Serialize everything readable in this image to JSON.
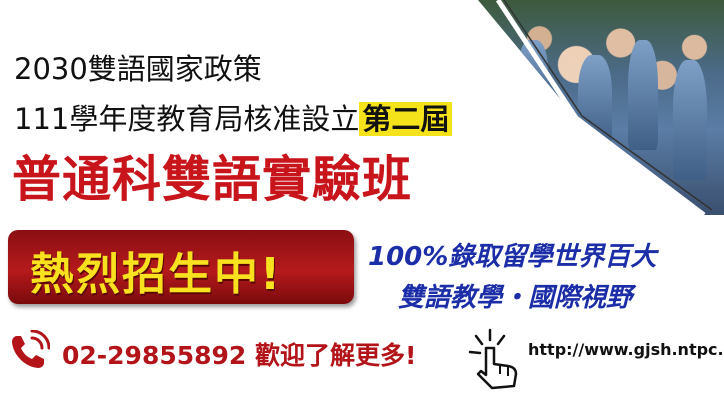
{
  "banner": {
    "line1": "2030雙語國家政策",
    "line2_prefix": "111學年度教育局核准設立",
    "line2_highlight": "第二屆",
    "title": "普通科雙語實驗班",
    "badge": "熱烈招生中!",
    "promo_line1": "100%錄取留學世界百大",
    "promo_line2": "雙語教學・國際視野",
    "phone": "02-29855892 歡迎了解更多!",
    "url": "http://www.gjsh.ntpc."
  },
  "colors": {
    "title_red": "#c8141b",
    "badge_bg": "#b51a1c",
    "badge_text": "#f8e21f",
    "highlight": "#f4e31b",
    "promo_blue": "#1c2da8"
  },
  "icons": {
    "phone": "phone-icon",
    "hand": "pointing-hand-icon"
  }
}
